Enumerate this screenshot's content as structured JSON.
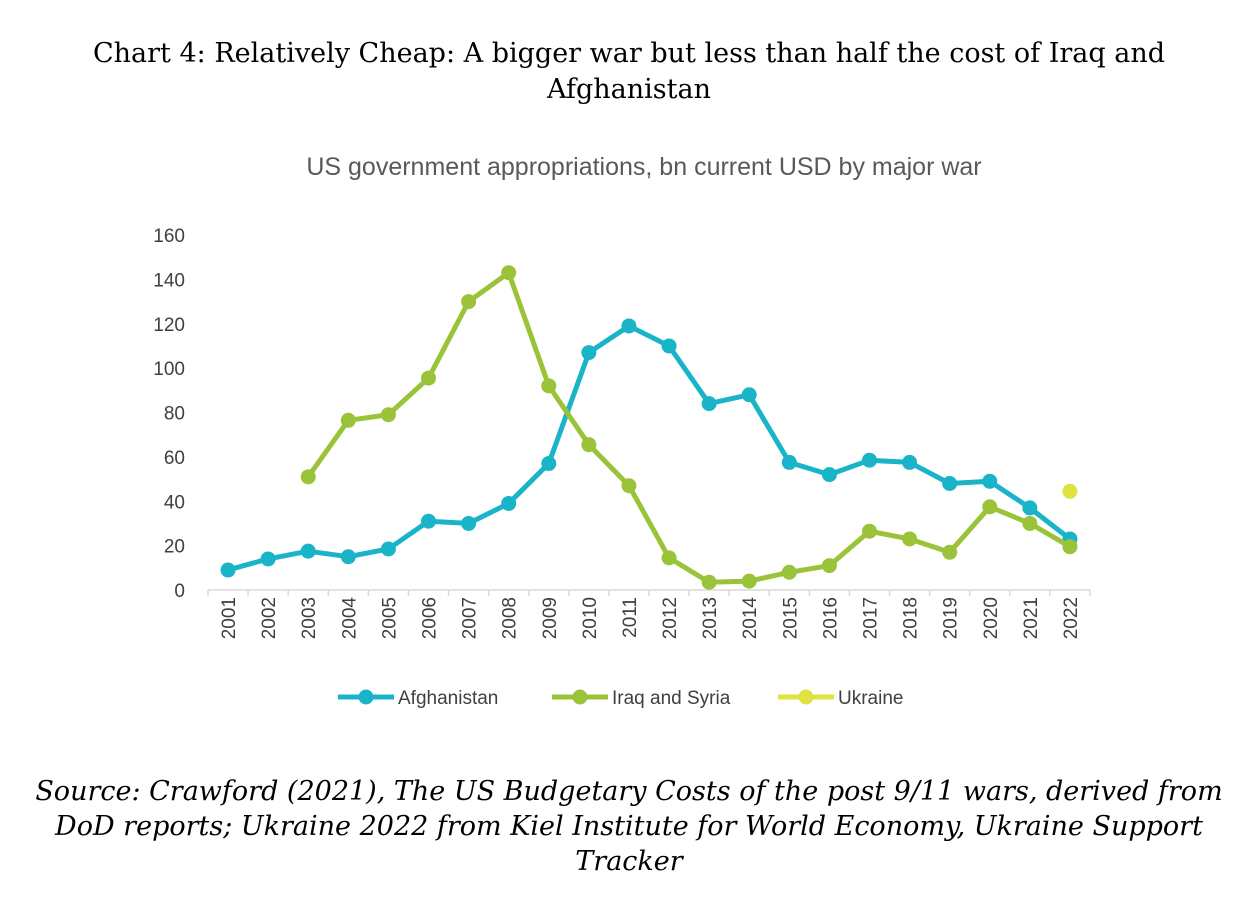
{
  "heading": {
    "line1": "Chart 4:  Relatively Cheap: A bigger war but less than half the cost of Iraq and",
    "line2": "Afghanistan"
  },
  "source": {
    "line1": "Source: Crawford (2021), The US Budgetary Costs of the post 9/11 wars,  derived from",
    "line2": "DoD reports; Ukraine 2022 from Kiel Institute for World Economy, Ukraine Support",
    "line3": "Tracker"
  },
  "chart_data": {
    "type": "line",
    "title": "US government appropriations, bn current USD by major war",
    "xlabel": "",
    "ylabel": "",
    "ylim": [
      0,
      160
    ],
    "yticks": [
      0,
      20,
      40,
      60,
      80,
      100,
      120,
      140,
      160
    ],
    "categories": [
      "2001",
      "2002",
      "2003",
      "2004",
      "2005",
      "2006",
      "2007",
      "2008",
      "2009",
      "2010",
      "2011",
      "2012",
      "2013",
      "2014",
      "2015",
      "2016",
      "2017",
      "2018",
      "2019",
      "2020",
      "2021",
      "2022"
    ],
    "grid": false,
    "legend_position": "bottom",
    "series": [
      {
        "name": "Afghanistan",
        "color": "#1AB4C8",
        "values": [
          9,
          14,
          17.5,
          15,
          18.5,
          31,
          30,
          39,
          57,
          107,
          119,
          110,
          84,
          88,
          57.5,
          52,
          58.5,
          57.5,
          48,
          49,
          37,
          23
        ]
      },
      {
        "name": "Iraq and Syria",
        "color": "#9BC33A",
        "values": [
          null,
          null,
          51,
          76.5,
          79,
          95.5,
          130,
          143,
          92,
          65.5,
          47,
          14.5,
          3.5,
          4,
          8,
          11,
          26.5,
          23,
          17,
          37.5,
          30,
          19.5
        ]
      },
      {
        "name": "Ukraine",
        "color": "#DDE33F",
        "values": [
          null,
          null,
          null,
          null,
          null,
          null,
          null,
          null,
          null,
          null,
          null,
          null,
          null,
          null,
          null,
          null,
          null,
          null,
          null,
          null,
          null,
          44.5
        ]
      }
    ]
  }
}
